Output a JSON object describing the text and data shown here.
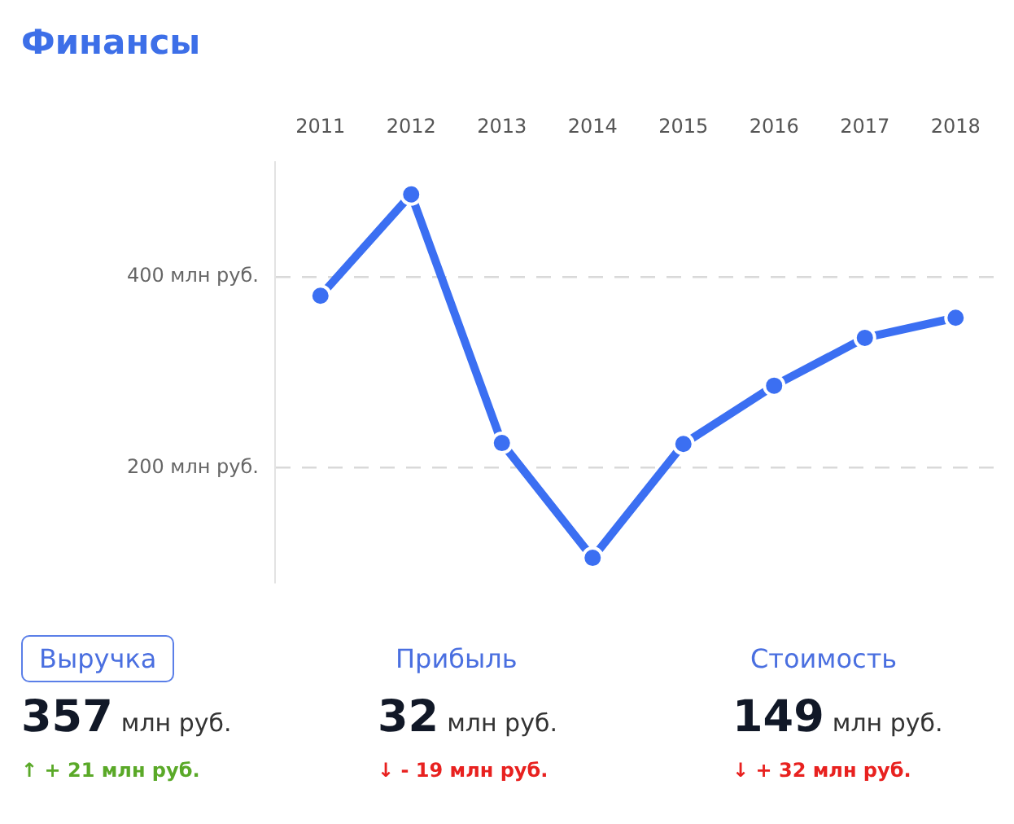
{
  "chart_data": {
    "type": "line",
    "title": "Финансы",
    "categories": [
      "2011",
      "2012",
      "2013",
      "2014",
      "2015",
      "2016",
      "2017",
      "2018"
    ],
    "series": [
      {
        "color": "#3b6ff2",
        "values": [
          380,
          486,
          226,
          106,
          225,
          286,
          336,
          357
        ]
      }
    ],
    "ylim": [
      80,
      520
    ],
    "yticks": [
      {
        "value": 200,
        "label": "200 млн руб."
      },
      {
        "value": 400,
        "label": "400 млн руб."
      }
    ],
    "grid": "y",
    "legend": false,
    "marker": "circle",
    "line_style": "solid",
    "annotations": [
      "Выручка",
      "357",
      "млн руб.",
      "↑ + 21 млн руб.",
      "Прибыль",
      "32",
      "млн руб.",
      "↓ - 19 млн руб.",
      "Стоимость",
      "149",
      "млн руб.",
      "↓ + 32 млн руб."
    ]
  }
}
